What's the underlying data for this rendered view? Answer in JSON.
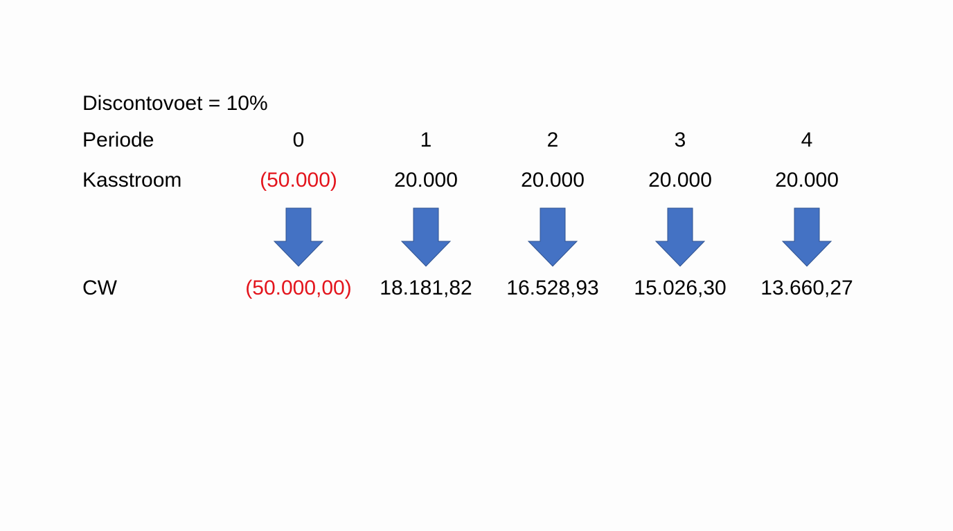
{
  "discount_label": "Discontovoet = 10%",
  "row_labels": {
    "period": "Periode",
    "cashflow": "Kasstroom",
    "pv": "CW"
  },
  "periods": [
    "0",
    "1",
    "2",
    "3",
    "4"
  ],
  "cashflows": [
    "(50.000)",
    "20.000",
    "20.000",
    "20.000",
    "20.000"
  ],
  "present_values": [
    "(50.000,00)",
    "18.181,82",
    "16.528,93",
    "15.026,30",
    "13.660,27"
  ],
  "colors": {
    "negative": "#e3141c",
    "arrow_fill": "#4472c4",
    "arrow_stroke": "#2f528f"
  },
  "arrow_icon": "down-arrow"
}
